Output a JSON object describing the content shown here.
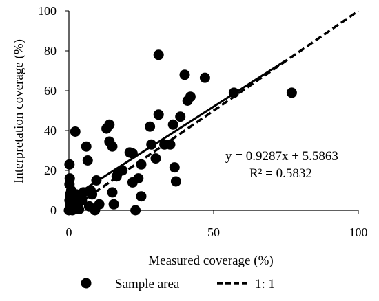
{
  "chart_data": {
    "type": "scatter",
    "xlabel": "Measured coverage (%)",
    "ylabel": "Interpretation coverage (%)",
    "xlim": [
      0,
      100
    ],
    "ylim": [
      0,
      100
    ],
    "xticks": [
      "0",
      "50",
      "100"
    ],
    "yticks": [
      "0",
      "20",
      "40",
      "60",
      "80",
      "100"
    ],
    "grid": false,
    "legend": {
      "placement": "bottom",
      "entries": [
        {
          "label": "Sample area",
          "marker": "filled-circle"
        },
        {
          "label": "1: 1",
          "marker": "dashed-line"
        }
      ]
    },
    "annotations": {
      "equation": "y = 0.9287x + 5.5863",
      "r2": "R² = 0.5832"
    },
    "trendline": {
      "slope": 0.9287,
      "intercept": 5.5863,
      "x_range": [
        0,
        75
      ]
    },
    "one_to_one": {
      "x_range": [
        0,
        100
      ]
    },
    "series": [
      {
        "name": "Sample area",
        "points": [
          [
            0,
            0
          ],
          [
            0.3,
            1
          ],
          [
            0.5,
            3
          ],
          [
            0.2,
            5
          ],
          [
            0.4,
            8
          ],
          [
            0.2,
            13
          ],
          [
            0.3,
            16
          ],
          [
            0.2,
            23
          ],
          [
            0.8,
            10
          ],
          [
            1,
            2
          ],
          [
            1.2,
            0
          ],
          [
            1.5,
            4
          ],
          [
            1.8,
            6
          ],
          [
            2,
            1
          ],
          [
            2.5,
            8
          ],
          [
            3,
            3
          ],
          [
            3.5,
            0.5
          ],
          [
            4,
            7
          ],
          [
            4.5,
            5
          ],
          [
            5,
            9
          ],
          [
            2.2,
            39.5
          ],
          [
            6,
            32
          ],
          [
            6.5,
            25
          ],
          [
            7,
            2
          ],
          [
            7.5,
            10
          ],
          [
            8,
            8
          ],
          [
            9,
            0
          ],
          [
            9.5,
            15
          ],
          [
            10.5,
            3
          ],
          [
            13,
            41
          ],
          [
            14,
            43
          ],
          [
            14,
            34.5
          ],
          [
            15,
            32
          ],
          [
            15,
            9
          ],
          [
            15.5,
            3
          ],
          [
            16.5,
            17
          ],
          [
            17,
            19
          ],
          [
            18.5,
            20
          ],
          [
            21,
            29
          ],
          [
            22,
            28.5
          ],
          [
            22,
            14
          ],
          [
            23,
            0
          ],
          [
            24,
            16
          ],
          [
            25,
            23
          ],
          [
            25,
            7
          ],
          [
            28,
            42
          ],
          [
            28.5,
            33
          ],
          [
            30,
            26
          ],
          [
            31,
            48
          ],
          [
            31,
            78
          ],
          [
            33,
            33
          ],
          [
            35,
            33
          ],
          [
            36,
            43
          ],
          [
            36.5,
            21.5
          ],
          [
            37,
            14.5
          ],
          [
            38.5,
            47
          ],
          [
            40,
            68
          ],
          [
            41,
            55
          ],
          [
            42,
            57
          ],
          [
            47,
            66.5
          ],
          [
            57,
            59
          ],
          [
            77,
            59
          ]
        ]
      }
    ]
  }
}
